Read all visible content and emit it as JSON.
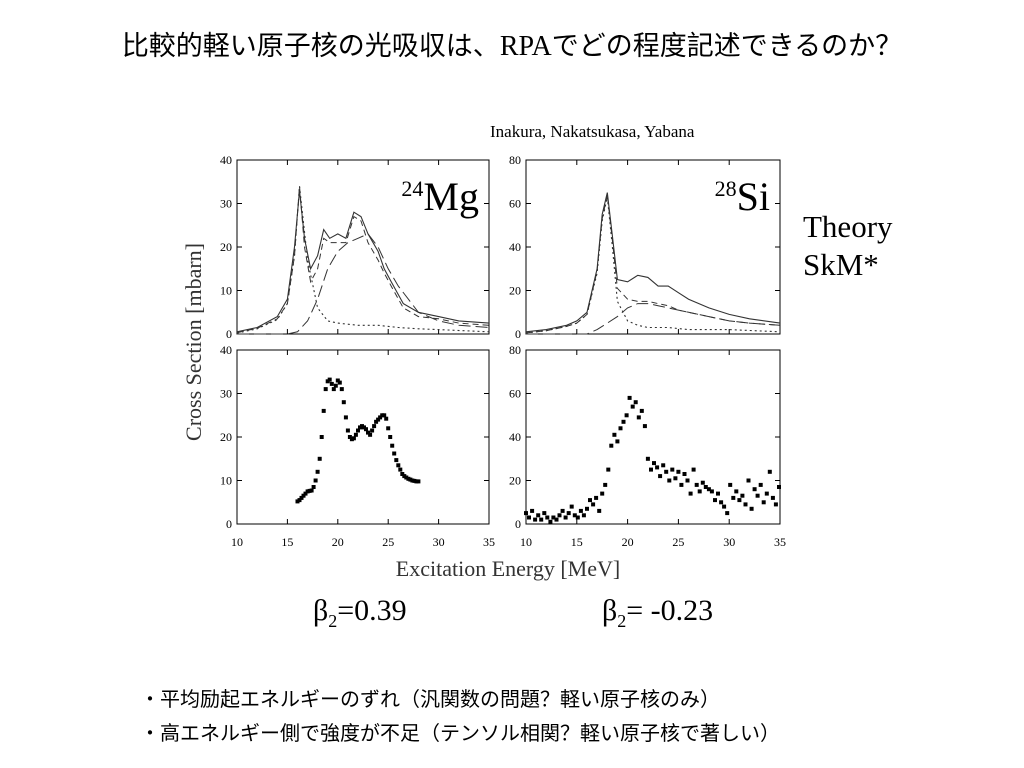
{
  "title": {
    "before": "比較的軽い原子核の光吸収は、",
    "rpa": "RPA",
    "after": "でどの程度記述できるのか？"
  },
  "authors": "Inakura, Nakatsukasa, Yabana",
  "theory": {
    "line1": "Theory",
    "line2": "SkM*"
  },
  "beta": [
    {
      "sym": "β",
      "sub": "2",
      "val": "=0.39"
    },
    {
      "sym": "β",
      "sub": "2",
      "val": "= -0.23"
    }
  ],
  "bullets": [
    "・平均励起エネルギーのずれ（汎関数の問題？軽い原子核のみ）",
    "・高エネルギー側で強度が不足（テンソル相関？軽い原子核で著しい）"
  ],
  "chart_data": {
    "type": "line",
    "xlabel": "Excitation Energy [MeV]",
    "ylabel": "Cross Section [mbarn]",
    "xlim": [
      10,
      35
    ],
    "xticks": [
      10,
      15,
      20,
      25,
      30,
      35
    ],
    "panels": [
      {
        "nucleus": {
          "mass": "24",
          "symbol": "Mg"
        },
        "kind": "theory",
        "ylim": [
          0,
          40
        ],
        "yticks": [
          0,
          10,
          20,
          30,
          40
        ],
        "series": [
          {
            "style": "solid",
            "x": [
              10,
              12,
              14,
              15,
              15.7,
              16.2,
              16.7,
              17.3,
              18,
              18.6,
              19.2,
              20,
              20.8,
              21.6,
              22.3,
              23,
              24,
              24.6,
              25.3,
              26.5,
              28,
              30,
              32,
              35
            ],
            "y": [
              0.5,
              1.5,
              4,
              8,
              20,
              33,
              22,
              15,
              18,
              24,
              22,
              23,
              22,
              28,
              27,
              23,
              19,
              15,
              12,
              7,
              5,
              4,
              3,
              2.5
            ]
          },
          {
            "style": "dashed",
            "x": [
              10,
              12,
              14,
              15,
              15.7,
              16.2,
              16.7,
              17.3,
              18,
              18.6,
              19.2,
              20,
              20.8,
              21.6,
              22.3,
              23,
              24,
              24.6,
              25.3,
              26.5,
              28,
              30,
              32,
              35
            ],
            "y": [
              0.3,
              1.3,
              3.5,
              7,
              18,
              34,
              20,
              12,
              15,
              22,
              21,
              21,
              21,
              27,
              26,
              21,
              17,
              14,
              11,
              6,
              4,
              3.5,
              2.5,
              2
            ]
          },
          {
            "style": "long-dash",
            "x": [
              10,
              15,
              16,
              17,
              18,
              19,
              20,
              21,
              22,
              23,
              24,
              25,
              26,
              27,
              28,
              30,
              32,
              35
            ],
            "y": [
              0,
              0,
              0.5,
              3,
              8,
              15,
              19,
              21,
              22,
              23,
              20,
              15,
              11,
              8,
              5,
              3,
              2,
              1.5
            ]
          },
          {
            "style": "dotted",
            "x": [
              10,
              12,
              14,
              15,
              15.7,
              16.2,
              17,
              18,
              19,
              20,
              22,
              24,
              26,
              28,
              30,
              35
            ],
            "y": [
              0.2,
              1.2,
              3.3,
              7,
              18,
              34,
              17,
              6,
              3,
              2.5,
              2,
              2,
              1.5,
              1.2,
              1,
              0.5
            ]
          }
        ]
      },
      {
        "nucleus": {
          "mass": "28",
          "symbol": "Si"
        },
        "kind": "theory",
        "ylim": [
          0,
          80
        ],
        "yticks": [
          0,
          20,
          40,
          60,
          80
        ],
        "series": [
          {
            "style": "solid",
            "x": [
              10,
              12,
              14,
              15,
              16,
              17,
              17.5,
              18,
              18.5,
              19,
              20,
              21,
              22,
              23,
              24,
              25,
              26,
              28,
              30,
              32,
              35
            ],
            "y": [
              1,
              2,
              4,
              6,
              10,
              30,
              55,
              65,
              45,
              25,
              24,
              27,
              26,
              22,
              22,
              19,
              16,
              12,
              9,
              7,
              5
            ]
          },
          {
            "style": "dashed",
            "x": [
              10,
              12,
              14,
              15,
              16,
              17,
              17.5,
              18,
              18.5,
              19,
              20,
              21,
              22,
              23,
              24,
              25,
              26,
              28,
              30,
              32,
              35
            ],
            "y": [
              0.5,
              1.5,
              3.5,
              5,
              9,
              29,
              53,
              64,
              43,
              21,
              16,
              15,
              15,
              14,
              13,
              11,
              10,
              8,
              6,
              5,
              4
            ]
          },
          {
            "style": "long-dash",
            "x": [
              10,
              16,
              17,
              18,
              19,
              20,
              21,
              22,
              23,
              24,
              25,
              26,
              28,
              30,
              32,
              35
            ],
            "y": [
              0,
              0,
              2,
              5,
              8,
              12,
              14,
              14,
              13,
              12,
              11,
              10,
              8,
              6,
              5,
              4
            ]
          },
          {
            "style": "dotted",
            "x": [
              10,
              12,
              14,
              15,
              16,
              17,
              17.5,
              18,
              18.5,
              19,
              20,
              21,
              22,
              24,
              26,
              30,
              35
            ],
            "y": [
              0.5,
              1.5,
              3.5,
              5,
              9,
              28,
              52,
              63,
              40,
              15,
              6,
              4,
              3,
              3,
              2,
              2,
              1
            ]
          }
        ]
      },
      {
        "kind": "experiment",
        "ylim": [
          0,
          40
        ],
        "yticks": [
          0,
          10,
          20,
          30,
          40
        ],
        "x": [
          16,
          16.2,
          16.4,
          16.6,
          16.8,
          17,
          17.2,
          17.4,
          17.6,
          17.8,
          18,
          18.2,
          18.4,
          18.6,
          18.8,
          19,
          19.2,
          19.4,
          19.6,
          19.8,
          20,
          20.2,
          20.4,
          20.6,
          20.8,
          21,
          21.2,
          21.4,
          21.6,
          21.8,
          22,
          22.2,
          22.4,
          22.6,
          22.8,
          23,
          23.2,
          23.4,
          23.6,
          23.8,
          24,
          24.2,
          24.4,
          24.6,
          24.8,
          25,
          25.2,
          25.4,
          25.6,
          25.8,
          26,
          26.2,
          26.4,
          26.6,
          26.8,
          27,
          27.2,
          27.4,
          27.6,
          27.8,
          28
        ],
        "y": [
          5.2,
          5.5,
          6,
          6.5,
          7,
          7.5,
          7.6,
          7.7,
          8.5,
          10,
          12,
          15,
          20,
          26,
          31,
          32.8,
          33.2,
          32.2,
          31,
          31.8,
          33,
          32.5,
          31,
          28,
          24.5,
          21.5,
          20,
          19.5,
          19.7,
          20.5,
          21.5,
          22.2,
          22.5,
          22.2,
          21.8,
          21,
          20.5,
          21.5,
          22.5,
          23.5,
          24,
          24.5,
          25,
          25,
          24.2,
          22,
          20,
          18,
          16.2,
          14.7,
          13.5,
          12.5,
          11.5,
          11,
          10.7,
          10.4,
          10.2,
          10,
          9.9,
          9.8,
          9.8
        ]
      },
      {
        "kind": "experiment",
        "ylim": [
          0,
          80
        ],
        "yticks": [
          0,
          20,
          40,
          60,
          80
        ],
        "x": [
          10,
          10.3,
          10.6,
          10.9,
          11.2,
          11.5,
          11.8,
          12.1,
          12.4,
          12.7,
          13,
          13.3,
          13.6,
          13.9,
          14.2,
          14.5,
          14.8,
          15.1,
          15.4,
          15.7,
          16,
          16.3,
          16.6,
          16.9,
          17.2,
          17.5,
          17.8,
          18.1,
          18.4,
          18.7,
          19,
          19.3,
          19.6,
          19.9,
          20.2,
          20.5,
          20.8,
          21.1,
          21.4,
          21.7,
          22,
          22.3,
          22.6,
          22.9,
          23.2,
          23.5,
          23.8,
          24.1,
          24.4,
          24.7,
          25,
          25.3,
          25.6,
          25.9,
          26.2,
          26.5,
          26.8,
          27.1,
          27.4,
          27.7,
          28,
          28.3,
          28.6,
          28.9,
          29.2,
          29.5,
          29.8,
          30.1,
          30.4,
          30.7,
          31,
          31.3,
          31.6,
          31.9,
          32.2,
          32.5,
          32.8,
          33.1,
          33.4,
          33.7,
          34,
          34.3,
          34.6,
          34.9
        ],
        "y": [
          5,
          3,
          6,
          2,
          4,
          2,
          5,
          3,
          1,
          3,
          2,
          4,
          6,
          3,
          5,
          8,
          4,
          3,
          6,
          4,
          7,
          11,
          9,
          12,
          6,
          14,
          18,
          25,
          36,
          41,
          38,
          44,
          47,
          50,
          58,
          54,
          56,
          49,
          52,
          45,
          30,
          25,
          28,
          26,
          22,
          27,
          24,
          20,
          25,
          21,
          24,
          18,
          23,
          20,
          14,
          25,
          18,
          15,
          19,
          17,
          16,
          15,
          11,
          14,
          10,
          8,
          5,
          18,
          12,
          15,
          11,
          13,
          9,
          20,
          7,
          16,
          13,
          18,
          10,
          14,
          24,
          12,
          9,
          17
        ]
      }
    ]
  }
}
